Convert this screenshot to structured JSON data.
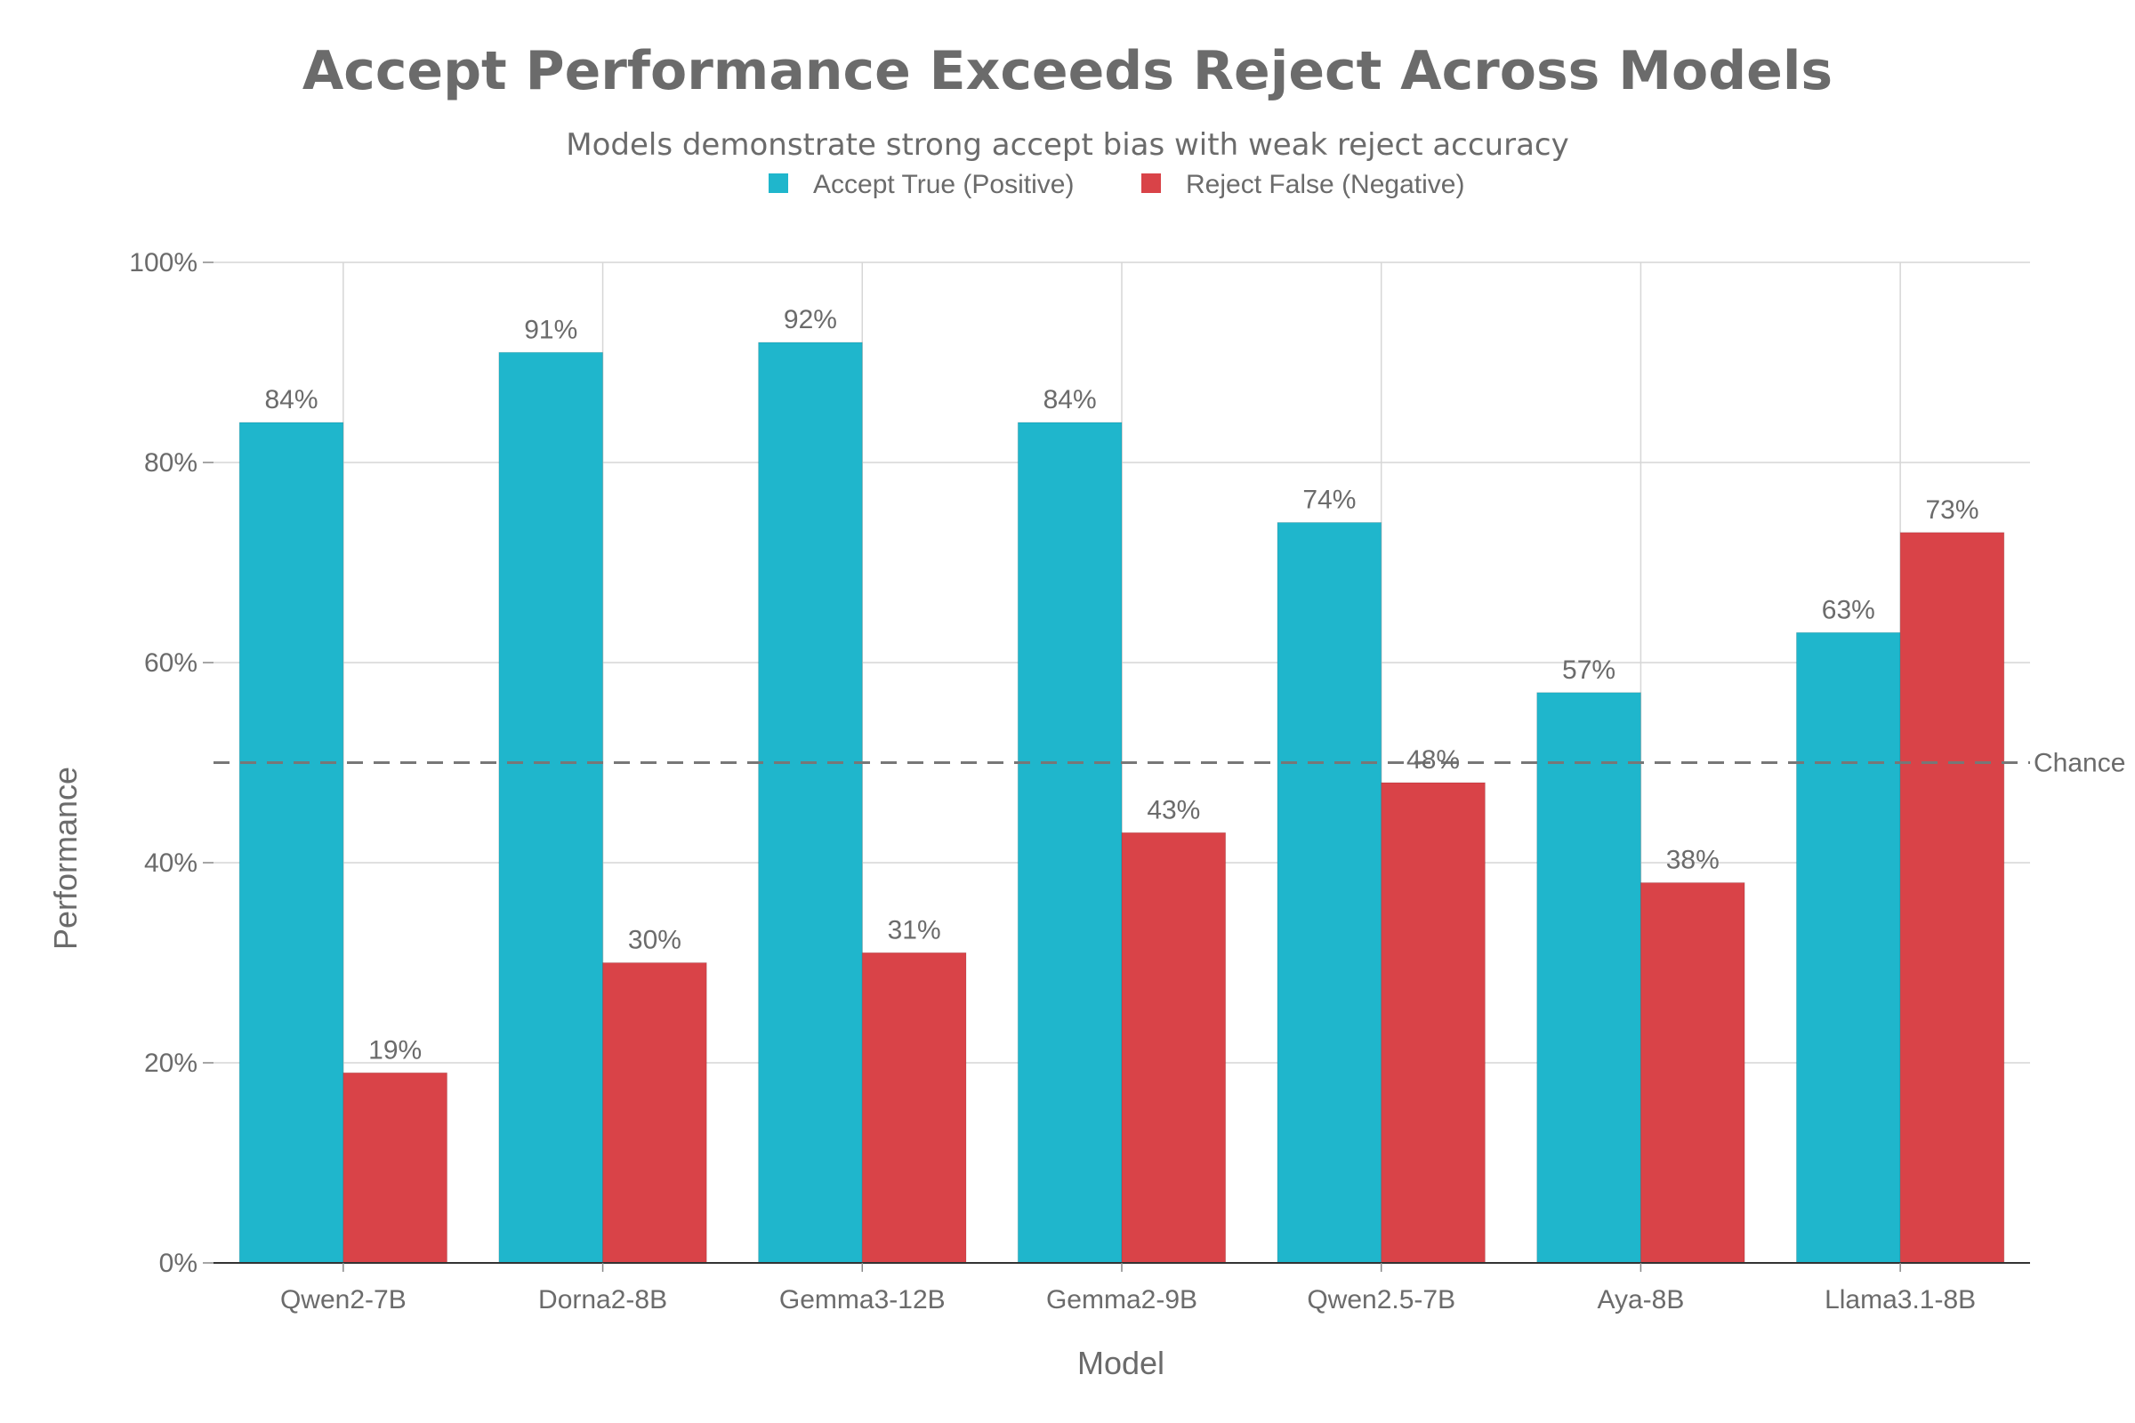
{
  "chart_data": {
    "type": "bar",
    "title": "Accept Performance Exceeds Reject Across Models",
    "subtitle": "Models demonstrate strong accept bias with weak reject accuracy",
    "xlabel": "Model",
    "ylabel": "Performance",
    "categories": [
      "Qwen2-7B",
      "Dorna2-8B",
      "Gemma3-12B",
      "Gemma2-9B",
      "Qwen2.5-7B",
      "Aya-8B",
      "Llama3.1-8B"
    ],
    "series": [
      {
        "name": "Accept True (Positive)",
        "color": "#1fb6cc",
        "values": [
          84,
          91,
          92,
          84,
          74,
          57,
          63
        ],
        "labels": [
          "84%",
          "91%",
          "92%",
          "84%",
          "74%",
          "57%",
          "63%"
        ]
      },
      {
        "name": "Reject False (Negative)",
        "color": "#d94348",
        "values": [
          19,
          30,
          31,
          43,
          48,
          38,
          73
        ],
        "labels": [
          "19%",
          "30%",
          "31%",
          "43%",
          "48%",
          "38%",
          "73%"
        ]
      }
    ],
    "ylim": [
      0,
      100
    ],
    "yticks": [
      0,
      20,
      40,
      60,
      80,
      100
    ],
    "ytick_labels": [
      "0%",
      "20%",
      "40%",
      "60%",
      "80%",
      "100%"
    ],
    "reference_line": {
      "value": 50,
      "label": "Chance",
      "color": "#777777",
      "style": "dashed"
    },
    "grid": true,
    "legend_position": "top-center"
  }
}
